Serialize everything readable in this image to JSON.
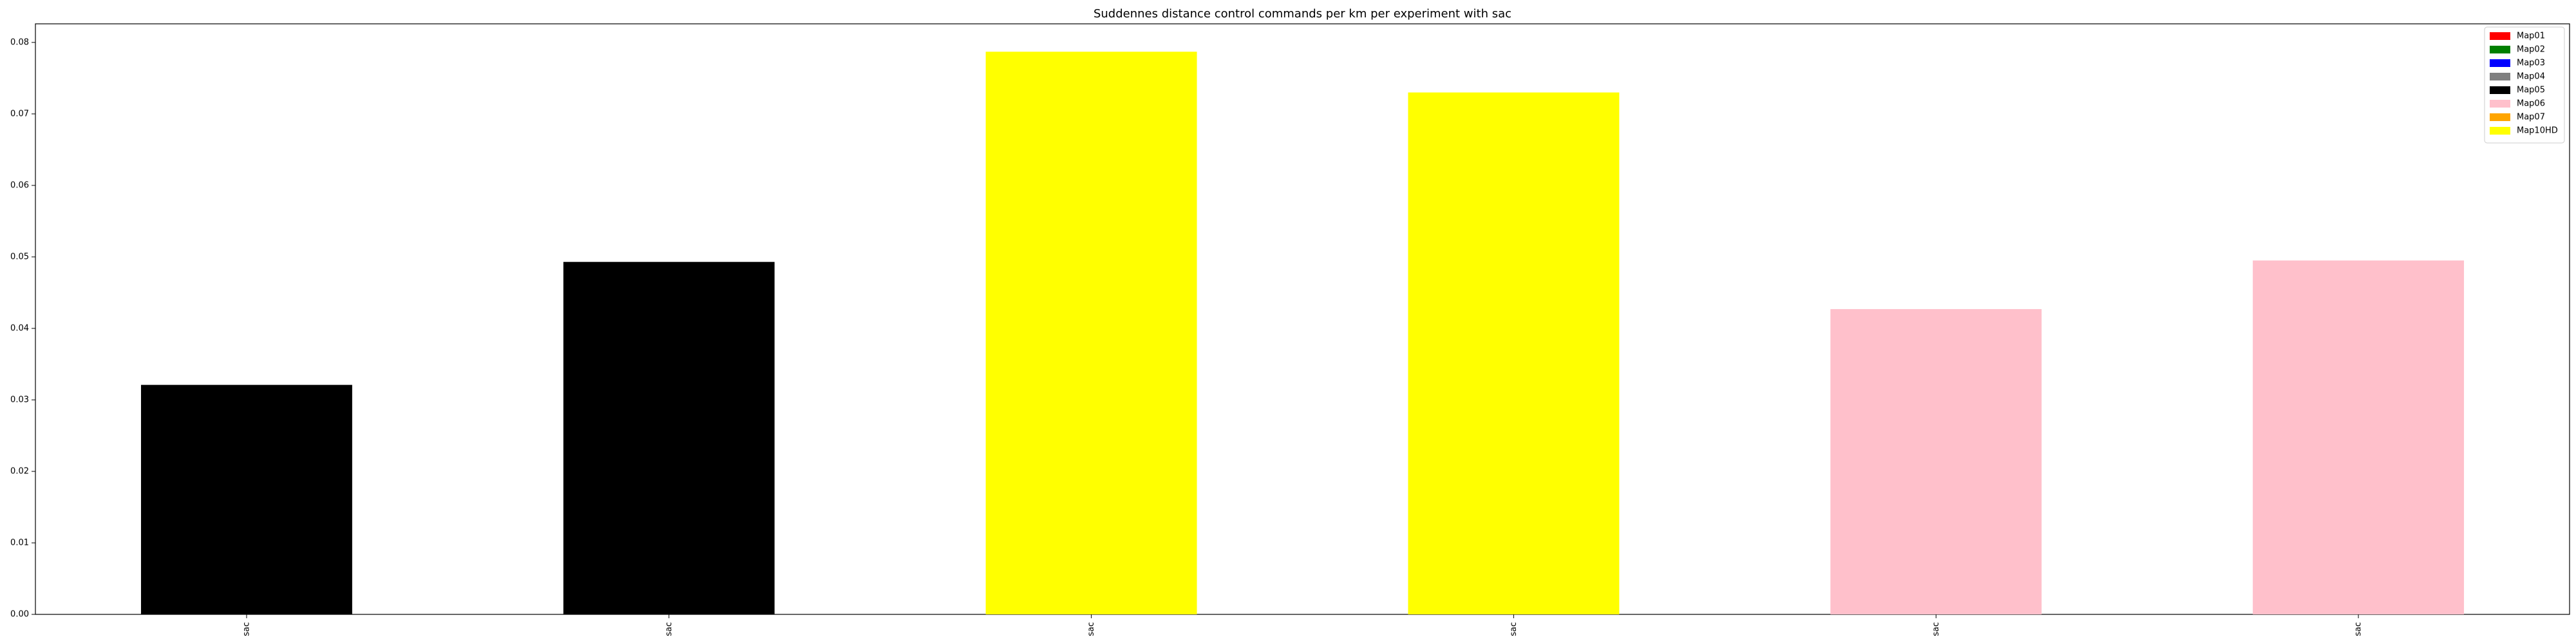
{
  "chart_data": {
    "type": "bar",
    "title": "Suddennes distance control commands per km per experiment with sac",
    "xlabel": "",
    "ylabel": "",
    "categories": [
      "sac",
      "sac",
      "sac",
      "sac",
      "sac",
      "sac"
    ],
    "values": [
      0.0321,
      0.0493,
      0.0787,
      0.073,
      0.0427,
      0.0495
    ],
    "bar_colors": [
      "#000000",
      "#000000",
      "#ffff00",
      "#ffff00",
      "#ffc0cb",
      "#ffc0cb"
    ],
    "ylim": [
      0,
      0.0826
    ],
    "yticks": [
      0.0,
      0.01,
      0.02,
      0.03,
      0.04,
      0.05,
      0.06,
      0.07,
      0.08
    ],
    "ytick_labels": [
      "0.00",
      "0.01",
      "0.02",
      "0.03",
      "0.04",
      "0.05",
      "0.06",
      "0.07",
      "0.08"
    ],
    "grid": false,
    "legend_position": "top-right",
    "legend": [
      {
        "label": "Map01",
        "color": "#ff0000"
      },
      {
        "label": "Map02",
        "color": "#008000"
      },
      {
        "label": "Map03",
        "color": "#0000ff"
      },
      {
        "label": "Map04",
        "color": "#808080"
      },
      {
        "label": "Map05",
        "color": "#000000"
      },
      {
        "label": "Map06",
        "color": "#ffc0cb"
      },
      {
        "label": "Map07",
        "color": "#ffa500"
      },
      {
        "label": "Map10HD",
        "color": "#ffff00"
      }
    ]
  }
}
